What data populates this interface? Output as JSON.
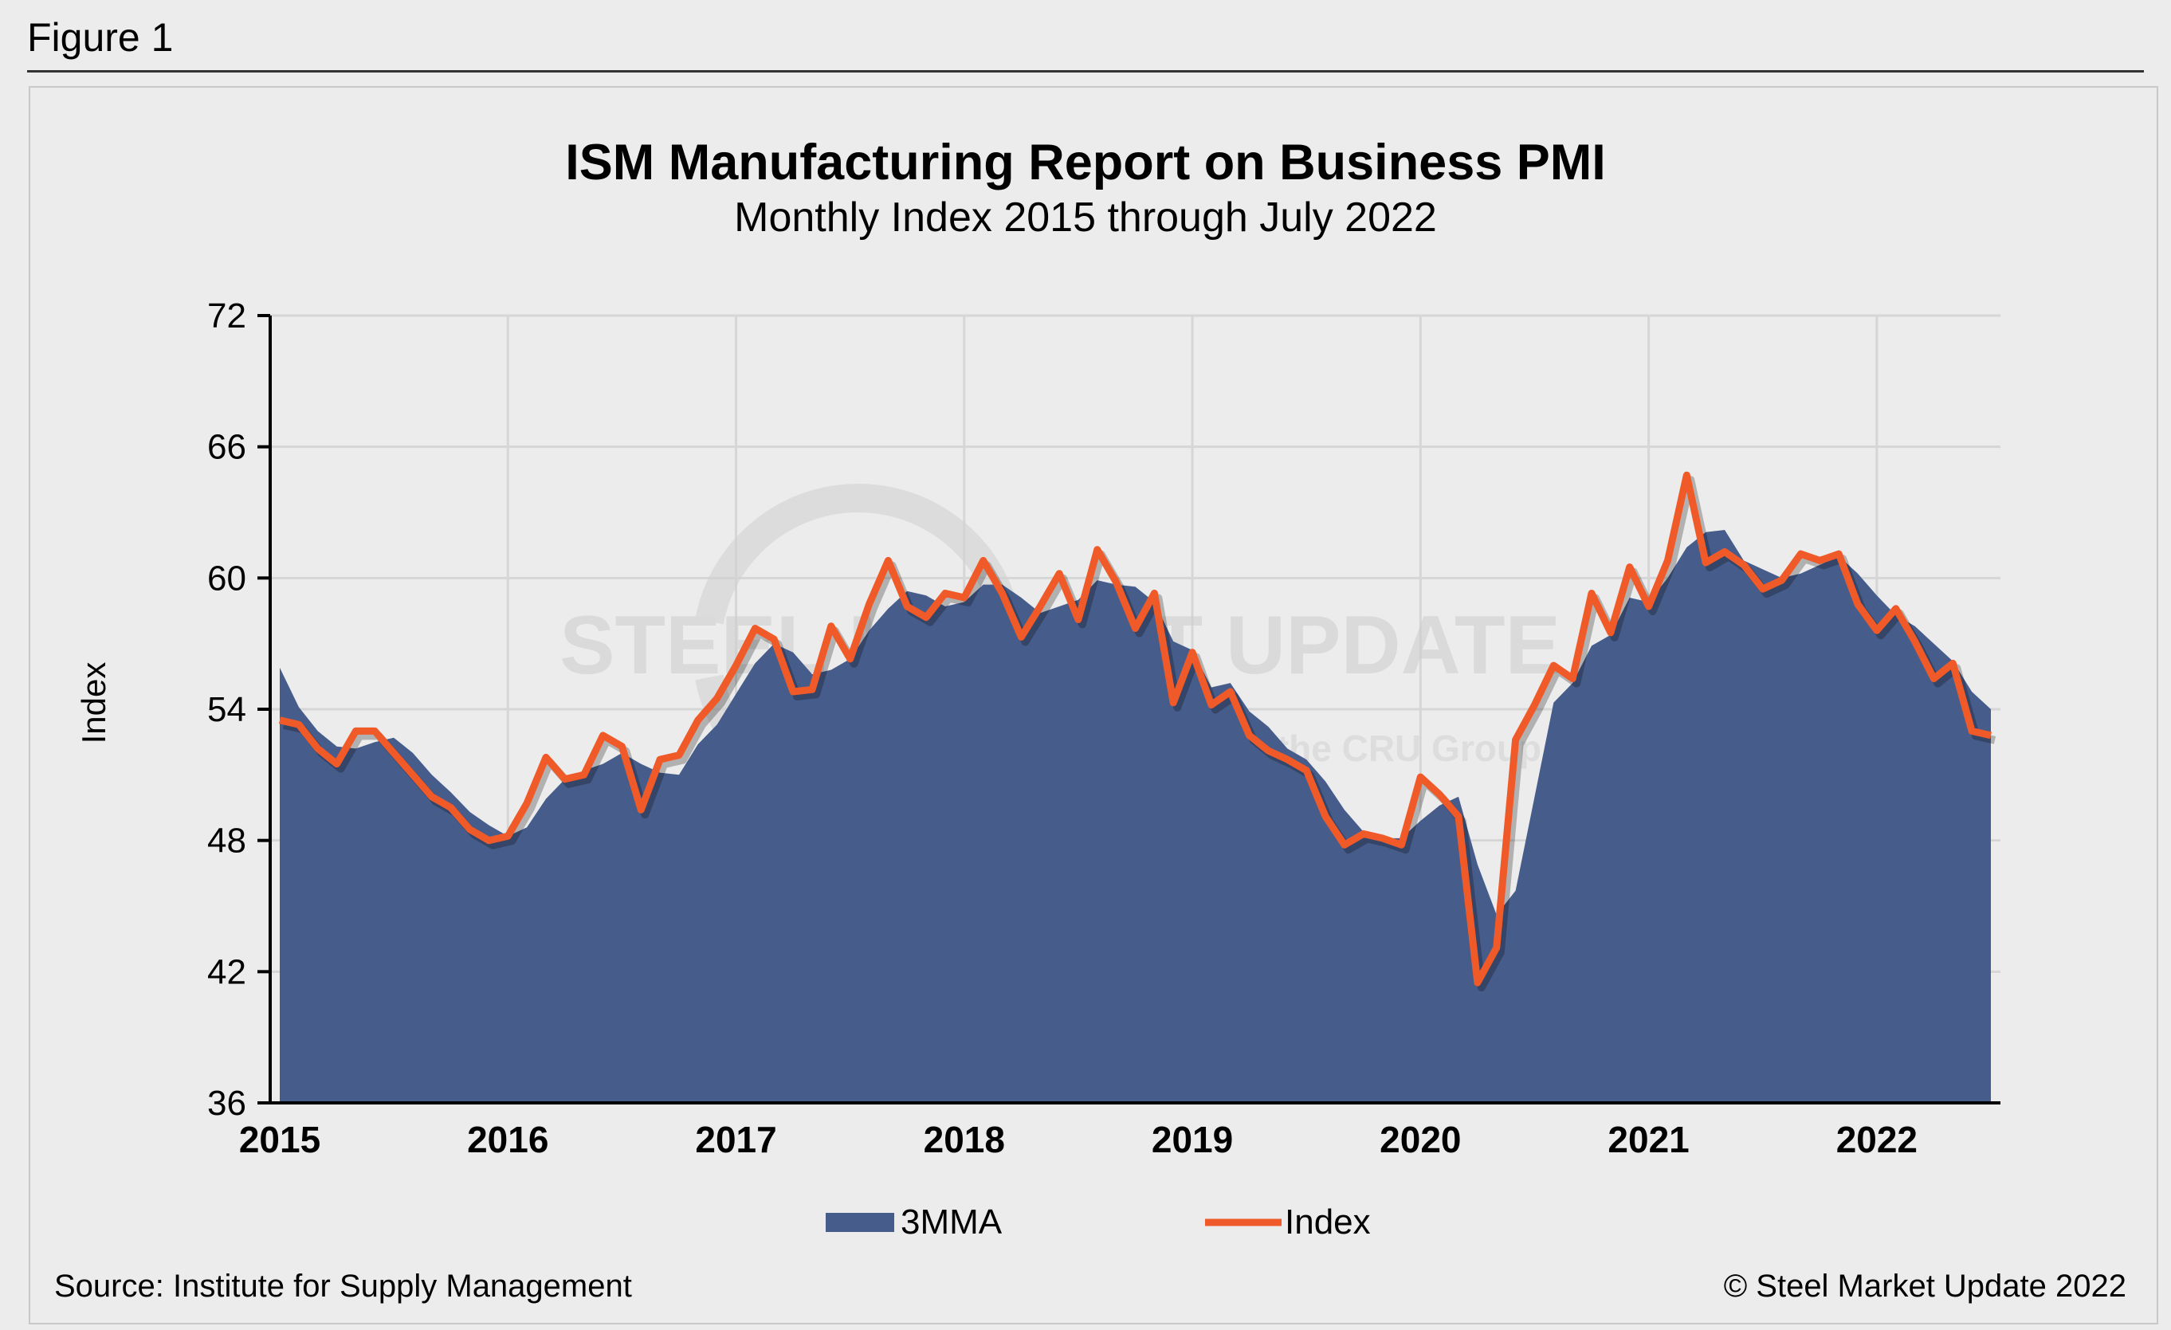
{
  "figure_label": "Figure 1",
  "source": "Source: Institute for Supply Management",
  "copyright": "© Steel Market Update 2022",
  "watermark": {
    "line1": "STEEL MARKET UPDATE",
    "line2": "part of the CRU Group"
  },
  "colors": {
    "area": "#465c8b",
    "line": "#f05a28",
    "background": "#ececec",
    "grid": "#d6d6d6"
  },
  "chart_data": {
    "type": "area+line",
    "title": "ISM Manufacturing Report on Business PMI",
    "subtitle": "Monthly Index 2015 through July 2022",
    "ylabel": "Index",
    "xlabel": "",
    "ylim": [
      36,
      72
    ],
    "yticks": [
      "36",
      "42",
      "48",
      "54",
      "60",
      "66",
      "72"
    ],
    "xtick_labels": [
      "2015",
      "2016",
      "2017",
      "2018",
      "2019",
      "2020",
      "2021",
      "2022"
    ],
    "x_start": "2015-01",
    "x_end": "2022-07",
    "frequency": "monthly",
    "grid": true,
    "legend_position": "bottom",
    "series": [
      {
        "name": "3MMA",
        "type": "area",
        "values": [
          55.9,
          54.1,
          53.0,
          52.3,
          52.2,
          52.5,
          52.7,
          52.0,
          51.0,
          50.2,
          49.3,
          48.7,
          48.2,
          48.6,
          49.9,
          50.8,
          51.2,
          51.5,
          52.0,
          51.5,
          51.1,
          51.0,
          52.4,
          53.3,
          54.7,
          56.1,
          57.0,
          56.6,
          55.6,
          55.8,
          56.3,
          57.6,
          58.6,
          59.4,
          59.2,
          58.7,
          58.9,
          59.7,
          59.7,
          59.1,
          58.4,
          58.7,
          59.0,
          59.9,
          59.7,
          59.6,
          58.9,
          57.1,
          56.7,
          55.0,
          55.2,
          53.9,
          53.2,
          52.2,
          51.7,
          50.7,
          49.4,
          48.4,
          48.1,
          48.1,
          48.9,
          49.6,
          50.0,
          46.9,
          44.6,
          45.7,
          50.0,
          54.3,
          55.2,
          56.9,
          57.4,
          59.1,
          58.9,
          60.0,
          61.4,
          62.1,
          62.2,
          60.8,
          60.4,
          60.0,
          60.2,
          60.6,
          61.0,
          60.2,
          59.2,
          58.3,
          57.8,
          57.0,
          56.2,
          54.8,
          54.0
        ]
      },
      {
        "name": "Index",
        "type": "line",
        "values": [
          53.5,
          53.3,
          52.2,
          51.5,
          53.0,
          53.0,
          52.0,
          51.0,
          50.0,
          49.5,
          48.5,
          48.0,
          48.2,
          49.7,
          51.8,
          50.8,
          51.0,
          52.8,
          52.3,
          49.4,
          51.7,
          51.9,
          53.5,
          54.5,
          56.0,
          57.7,
          57.2,
          54.8,
          54.9,
          57.8,
          56.3,
          58.8,
          60.8,
          58.7,
          58.2,
          59.3,
          59.1,
          60.8,
          59.3,
          57.3,
          58.7,
          60.2,
          58.1,
          61.3,
          59.8,
          57.7,
          59.3,
          54.3,
          56.6,
          54.2,
          54.8,
          52.8,
          52.1,
          51.7,
          51.2,
          49.1,
          47.8,
          48.3,
          48.1,
          47.8,
          50.9,
          50.1,
          49.1,
          41.5,
          43.1,
          52.6,
          54.2,
          56.0,
          55.4,
          59.3,
          57.5,
          60.5,
          58.7,
          60.8,
          64.7,
          60.7,
          61.2,
          60.6,
          59.5,
          59.9,
          61.1,
          60.8,
          61.1,
          58.8,
          57.6,
          58.6,
          57.1,
          55.4,
          56.1,
          53.0,
          52.8
        ]
      }
    ]
  }
}
